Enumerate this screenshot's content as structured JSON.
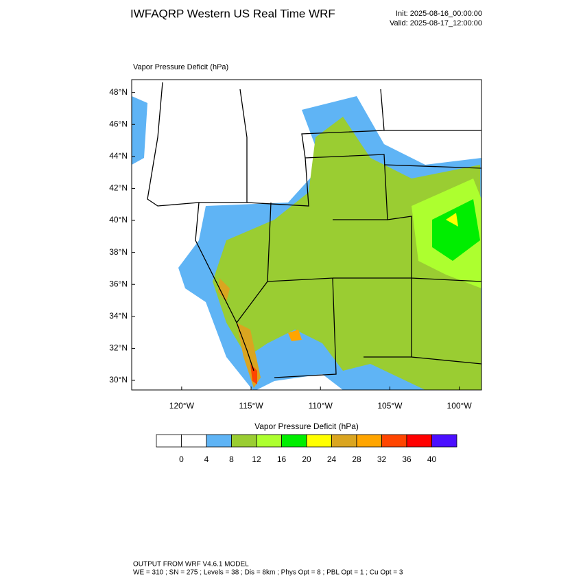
{
  "header": {
    "title": "IWFAQRP Western US Real Time WRF",
    "init": "Init: 2025-08-16_00:00:00",
    "valid": "Valid: 2025-08-17_12:00:00"
  },
  "map": {
    "field_label": "Vapor Pressure Deficit   (hPa)",
    "xlim": [
      -123.6,
      -98.4
    ],
    "ylim": [
      29.4,
      48.8
    ],
    "xticks": [
      {
        "value": -120,
        "label": "120°W"
      },
      {
        "value": -115,
        "label": "115°W"
      },
      {
        "value": -110,
        "label": "110°W"
      },
      {
        "value": -105,
        "label": "105°W"
      },
      {
        "value": -100,
        "label": "100°W"
      }
    ],
    "yticks": [
      {
        "value": 30,
        "label": "30°N"
      },
      {
        "value": 32,
        "label": "32°N"
      },
      {
        "value": 34,
        "label": "34°N"
      },
      {
        "value": 36,
        "label": "36°N"
      },
      {
        "value": 38,
        "label": "38°N"
      },
      {
        "value": 40,
        "label": "40°N"
      },
      {
        "value": 42,
        "label": "42°N"
      },
      {
        "value": 44,
        "label": "44°N"
      },
      {
        "value": 46,
        "label": "46°N"
      },
      {
        "value": 48,
        "label": "48°N"
      }
    ]
  },
  "colorbar": {
    "title": "Vapor Pressure Deficit  (hPa)",
    "levels": [
      0,
      4,
      8,
      12,
      16,
      20,
      24,
      28,
      32,
      36,
      40
    ],
    "colors": [
      "#ffffff",
      "#ffffff",
      "#5fb4f5",
      "#9acd32",
      "#adff2f",
      "#00ee00",
      "#ffff00",
      "#daa520",
      "#ffa500",
      "#ff4500",
      "#ff0000",
      "#4b0fff"
    ]
  },
  "footer": {
    "line1": "OUTPUT FROM WRF V4.6.1 MODEL",
    "line2": "WE = 310 ; SN = 275 ; Levels = 38 ; Dis = 8km ; Phys Opt = 8 ; PBL Opt = 1 ; Cu Opt = 3"
  }
}
